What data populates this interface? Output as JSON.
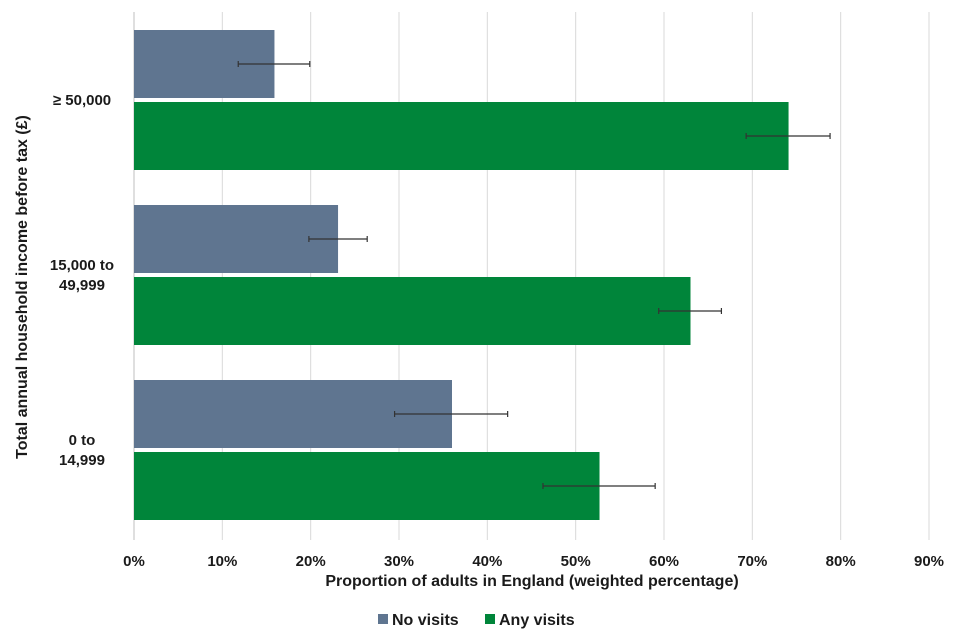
{
  "chart_data": {
    "type": "bar",
    "orientation": "horizontal",
    "categories": [
      "≥ 50,000",
      "15,000 to 49,999",
      "0 to 14,999"
    ],
    "category_lines": [
      [
        "≥ 50,000"
      ],
      [
        "15,000 to",
        "49,999"
      ],
      [
        "0 to",
        "14,999"
      ]
    ],
    "series": [
      {
        "name": "No visits",
        "color": "#5f7590",
        "values": [
          15.9,
          23.1,
          36.0
        ],
        "error_low": [
          11.8,
          19.8,
          29.5
        ],
        "error_high": [
          19.9,
          26.4,
          42.3
        ]
      },
      {
        "name": "Any visits",
        "color": "#00853a",
        "values": [
          74.1,
          63.0,
          52.7
        ],
        "error_low": [
          69.3,
          59.4,
          46.3
        ],
        "error_high": [
          78.8,
          66.5,
          59.0
        ]
      }
    ],
    "xlim": [
      0,
      90
    ],
    "xticks": [
      0,
      10,
      20,
      30,
      40,
      50,
      60,
      70,
      80,
      90
    ],
    "xtick_labels": [
      "0%",
      "10%",
      "20%",
      "30%",
      "40%",
      "50%",
      "60%",
      "70%",
      "80%",
      "90%"
    ],
    "xlabel": "Proportion of adults in England (weighted percentage)",
    "ylabel": "Total annual household income before tax (£)",
    "grid": "vertical",
    "legend": "bottom"
  }
}
